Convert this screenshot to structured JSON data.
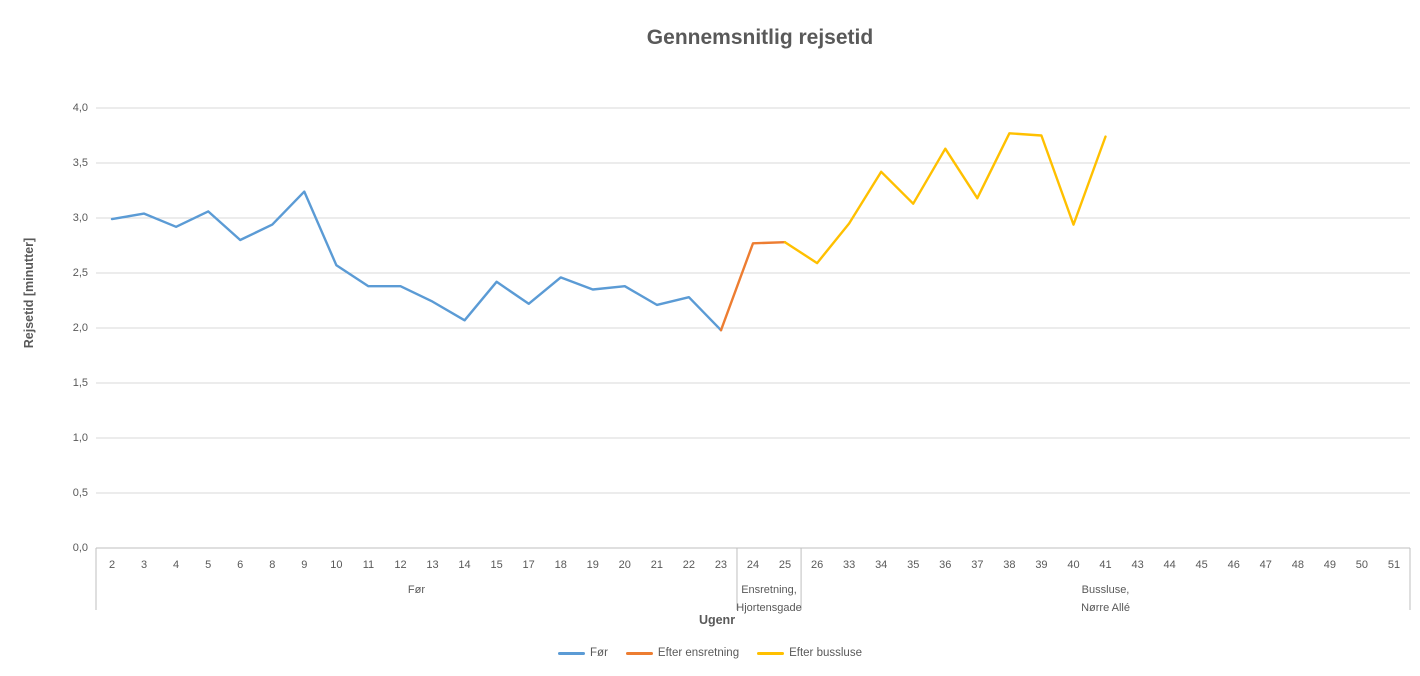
{
  "chart_data": {
    "type": "line",
    "title": "Gennemsnitlig rejsetid",
    "xlabel": "Ugenr",
    "ylabel": "Rejsetid [minutter]",
    "ylim": [
      0.0,
      4.0
    ],
    "ytick_step": 0.5,
    "grid": true,
    "legend_position": "bottom",
    "decimal_separator": "comma",
    "yticks": [
      {
        "label": "0,0",
        "value": 0.0
      },
      {
        "label": "0,5",
        "value": 0.5
      },
      {
        "label": "1,0",
        "value": 1.0
      },
      {
        "label": "1,5",
        "value": 1.5
      },
      {
        "label": "2,0",
        "value": 2.0
      },
      {
        "label": "2,5",
        "value": 2.5
      },
      {
        "label": "3,0",
        "value": 3.0
      },
      {
        "label": "3,5",
        "value": 3.5
      },
      {
        "label": "4,0",
        "value": 4.0
      }
    ],
    "categories": [
      "2",
      "3",
      "4",
      "5",
      "6",
      "8",
      "9",
      "10",
      "11",
      "12",
      "13",
      "14",
      "15",
      "17",
      "18",
      "19",
      "20",
      "21",
      "22",
      "23",
      "24",
      "25",
      "26",
      "33",
      "34",
      "35",
      "36",
      "37",
      "38",
      "39",
      "40",
      "41",
      "43",
      "44",
      "45",
      "46",
      "47",
      "48",
      "49",
      "50",
      "51"
    ],
    "group_bands": [
      {
        "label_lines": [
          "Før"
        ],
        "start_index": 0,
        "end_index": 20
      },
      {
        "label_lines": [
          "Ensretning,",
          "Hjortensgade"
        ],
        "start_index": 20,
        "end_index": 22
      },
      {
        "label_lines": [
          "Bussluse,",
          "Nørre Allé"
        ],
        "start_index": 22,
        "end_index": 41
      }
    ],
    "series": [
      {
        "name": "Før",
        "color": "#5B9BD5",
        "points": [
          [
            "2",
            2.99
          ],
          [
            "3",
            3.04
          ],
          [
            "4",
            2.92
          ],
          [
            "5",
            3.06
          ],
          [
            "6",
            2.8
          ],
          [
            "8",
            2.94
          ],
          [
            "9",
            3.24
          ],
          [
            "10",
            2.57
          ],
          [
            "11",
            2.38
          ],
          [
            "12",
            2.38
          ],
          [
            "13",
            2.24
          ],
          [
            "14",
            2.07
          ],
          [
            "15",
            2.42
          ],
          [
            "17",
            2.22
          ],
          [
            "18",
            2.46
          ],
          [
            "19",
            2.35
          ],
          [
            "20",
            2.38
          ],
          [
            "21",
            2.21
          ],
          [
            "22",
            2.28
          ],
          [
            "23",
            1.98
          ]
        ]
      },
      {
        "name": "Efter ensretning",
        "color": "#ED7D31",
        "points": [
          [
            "23",
            1.98
          ],
          [
            "24",
            2.77
          ],
          [
            "25",
            2.78
          ]
        ]
      },
      {
        "name": "Efter bussluse",
        "color": "#FFC000",
        "points": [
          [
            "25",
            2.78
          ],
          [
            "26",
            2.59
          ],
          [
            "33",
            2.95
          ],
          [
            "34",
            3.42
          ],
          [
            "35",
            3.13
          ],
          [
            "36",
            3.63
          ],
          [
            "37",
            3.18
          ],
          [
            "38",
            3.77
          ],
          [
            "39",
            3.75
          ],
          [
            "40",
            2.94
          ],
          [
            "41",
            3.74
          ]
        ]
      }
    ],
    "legend": [
      {
        "label": "Før",
        "color": "#5B9BD5"
      },
      {
        "label": "Efter ensretning",
        "color": "#ED7D31"
      },
      {
        "label": "Efter bussluse",
        "color": "#FFC000"
      }
    ],
    "colors": {
      "gridline": "#D9D9D9",
      "axis_line": "#BFBFBF",
      "text": "#595959"
    }
  }
}
